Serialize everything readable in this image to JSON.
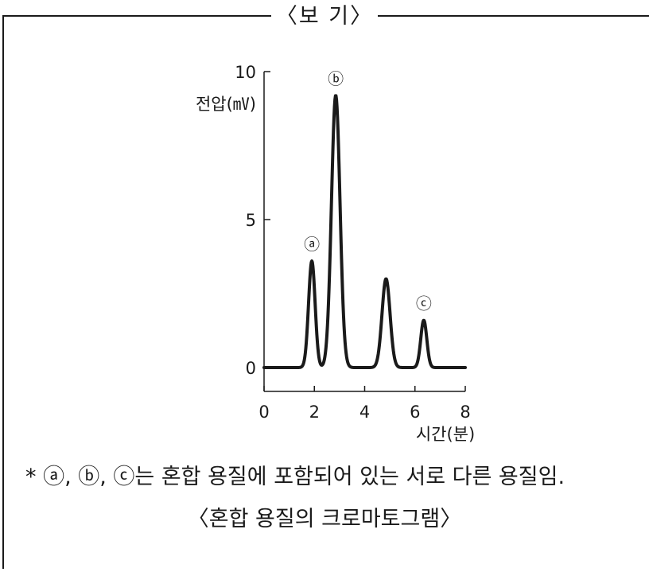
{
  "box_title": "〈보   기〉",
  "note": "* ⓐ, ⓑ, ⓒ는 혼합 용질에 포함되어 있는 서로 다른 용질임.",
  "caption": "〈혼합 용질의 크로마토그램〉",
  "chart_data": {
    "type": "line",
    "ylabel": "전압(㎷)",
    "xlabel": "시간(분)",
    "ylim": [
      0,
      10
    ],
    "xlim": [
      0,
      8
    ],
    "yticks": [
      0,
      5,
      10
    ],
    "xticks": [
      0,
      2,
      4,
      6,
      8
    ],
    "baseline": 0,
    "peaks": [
      {
        "label": "ⓐ",
        "x": 1.9,
        "height": 3.6
      },
      {
        "label": "ⓑ",
        "x": 2.85,
        "height": 9.2
      },
      {
        "label": "",
        "x": 4.85,
        "height": 3.0
      },
      {
        "label": "ⓒ",
        "x": 6.35,
        "height": 1.6
      }
    ],
    "grid": false,
    "line_color": "#1a1a1a"
  }
}
